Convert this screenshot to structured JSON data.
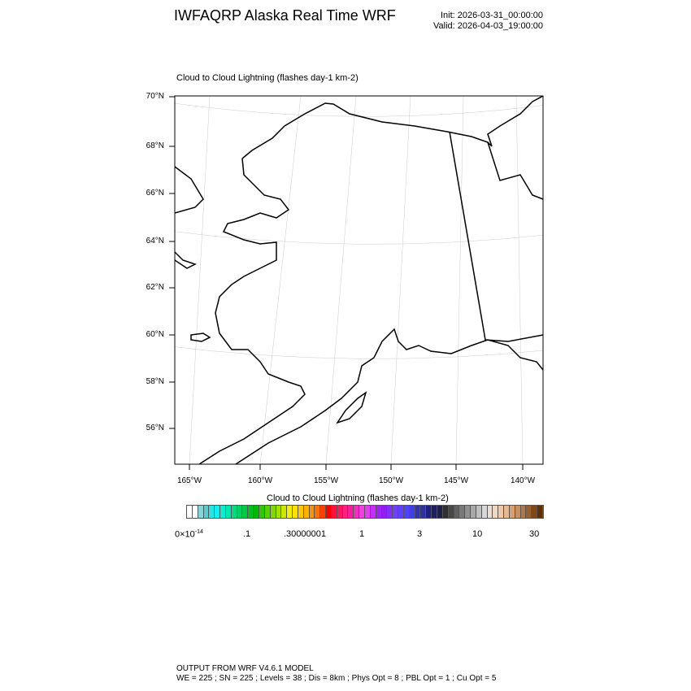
{
  "header": {
    "title": "IWFAQRP Alaska Real Time WRF",
    "init": "Init: 2026-03-31_00:00:00",
    "valid": "Valid: 2026-04-03_19:00:00"
  },
  "plot": {
    "subtitle": "Cloud to Cloud Lightning   (flashes day-1 km-2)",
    "lat_labels": [
      "70°N",
      "68°N",
      "66°N",
      "64°N",
      "62°N",
      "60°N",
      "58°N",
      "56°N"
    ],
    "lon_labels": [
      "165°W",
      "160°W",
      "155°W",
      "150°W",
      "145°W",
      "140°W"
    ],
    "field_values": "none shown (all below lowest level)"
  },
  "colorbar": {
    "title": "Cloud to Cloud Lightning  (flashes day-1 km-2)",
    "labels": [
      "0×10",
      "-14",
      ".1",
      ".30000001",
      "1",
      "3",
      "10",
      "30"
    ],
    "colors": [
      "#ffffff",
      "#ffffff",
      "#80d8d8",
      "#50d0d0",
      "#20e8e8",
      "#10f0f0",
      "#00f0d0",
      "#00e8b0",
      "#00dd80",
      "#00d060",
      "#00c840",
      "#00c020",
      "#00b800",
      "#30c800",
      "#58d000",
      "#80d800",
      "#a8e000",
      "#d0e800",
      "#f0f000",
      "#ffe000",
      "#ffc800",
      "#ffb000",
      "#ff9000",
      "#ff7000",
      "#ff4000",
      "#ff0000",
      "#ff1040",
      "#ff1860",
      "#ff2080",
      "#f020a0",
      "#f030c0",
      "#f040e0",
      "#e040f0",
      "#c030ff",
      "#a020ff",
      "#9020f0",
      "#8030ff",
      "#7040ff",
      "#6040ff",
      "#5040ff",
      "#4040e0",
      "#3030c0",
      "#3030a0",
      "#202080",
      "#202060",
      "#202040",
      "#303030",
      "#484848",
      "#606060",
      "#787878",
      "#909090",
      "#a8a8a8",
      "#c0c0c0",
      "#d8d8d8",
      "#e8e0d8",
      "#f0d8c0",
      "#f0c8a8",
      "#e8b890",
      "#d8a070",
      "#c89060",
      "#b07848",
      "#986030",
      "#804818",
      "#603000"
    ]
  },
  "footer": {
    "line1": "OUTPUT FROM WRF V4.6.1 MODEL",
    "line2": "WE = 225 ; SN = 225 ; Levels = 38 ; Dis = 8km ; Phys Opt = 8 ; PBL Opt = 1 ; Cu Opt = 5"
  }
}
